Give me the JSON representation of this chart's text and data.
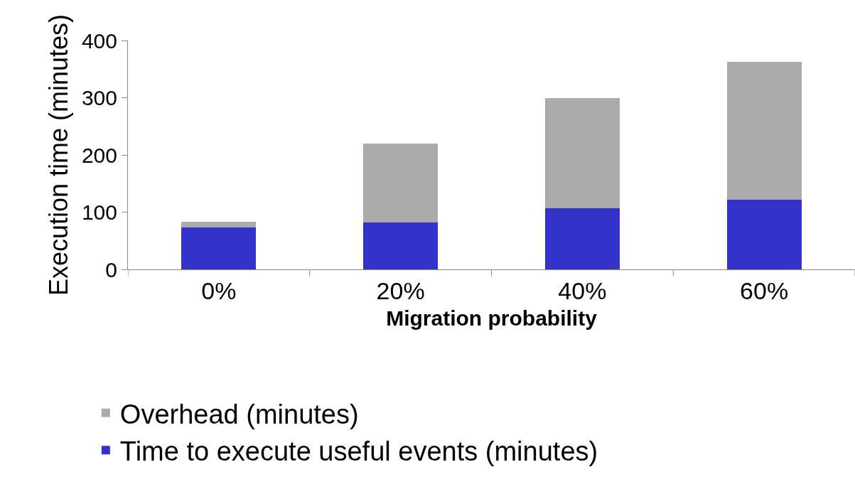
{
  "chart_data": {
    "type": "bar",
    "stacked": true,
    "xlabel": "Migration probability",
    "ylabel": "Execution time (minutes)",
    "categories": [
      "0%",
      "20%",
      "40%",
      "60%"
    ],
    "series": [
      {
        "name": "Time to execute useful events (minutes)",
        "color": "#3333cc",
        "values": [
          73,
          82,
          107,
          122
        ]
      },
      {
        "name": "Overhead (minutes)",
        "color": "#aaaaaa",
        "values": [
          10,
          138,
          192,
          241
        ]
      }
    ],
    "ylim": [
      0,
      400
    ],
    "yticks": [
      0,
      100,
      200,
      300,
      400
    ],
    "legend": "bottom"
  }
}
